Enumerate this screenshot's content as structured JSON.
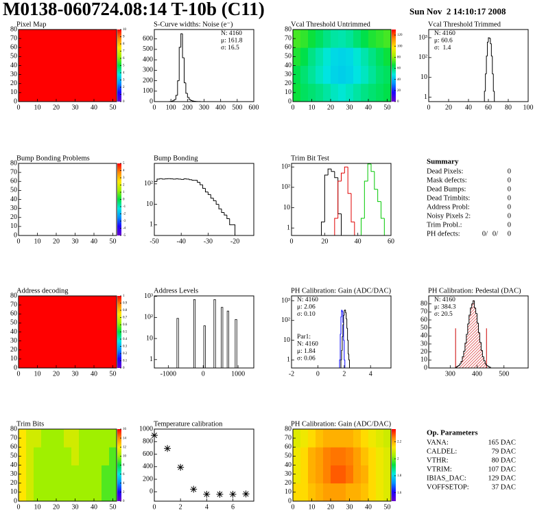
{
  "header": {
    "title": "M0138-060724.08:14 T-10b (C11)",
    "date": "Sun Nov  2 14:10:17 2008"
  },
  "palette": [
    "#6a00cc",
    "#1f00ff",
    "#0090ff",
    "#00e8e0",
    "#00e040",
    "#a0f000",
    "#ffe600",
    "#ff8a00",
    "#ff0000"
  ],
  "chart_data": [
    {
      "type": "heatmap",
      "title": "Pixel Map",
      "xlim": [
        0,
        52
      ],
      "ylim": [
        0,
        80
      ],
      "xticks": [
        0,
        10,
        20,
        30,
        40,
        50
      ],
      "yticks": [
        0,
        10,
        20,
        30,
        40,
        50,
        60,
        70,
        80
      ],
      "zlim": [
        0,
        10
      ],
      "zticks": [
        0,
        1,
        2,
        3,
        4,
        5,
        6,
        7,
        8,
        9,
        10
      ],
      "values": [
        [
          10
        ]
      ]
    },
    {
      "type": "histogram",
      "title": "S-Curve widths: Noise (e⁻)",
      "xlim": [
        0,
        600
      ],
      "ylim": [
        0,
        690
      ],
      "xticks": [
        0,
        100,
        200,
        300,
        400,
        500,
        600
      ],
      "yticks": [
        0,
        100,
        200,
        300,
        400,
        500,
        600
      ],
      "bins": [
        90,
        100,
        110,
        120,
        130,
        140,
        150,
        160,
        170,
        180,
        190,
        200,
        210,
        220,
        230,
        240,
        250,
        260,
        270,
        280,
        290,
        300
      ],
      "values": [
        1,
        3,
        8,
        20,
        60,
        200,
        520,
        650,
        420,
        180,
        80,
        40,
        20,
        10,
        6,
        3,
        2,
        1,
        1,
        0,
        0
      ],
      "color": "#000000",
      "stats": [
        {
          "text": "N: 4160",
          "color": "#000000"
        },
        {
          "text": "μ: 161.8",
          "color": "#000000"
        },
        {
          "text": "σ: 16.5",
          "color": "#000000"
        }
      ]
    },
    {
      "type": "heatmap",
      "title": "Vcal Threshold Untrimmed",
      "xlim": [
        0,
        52
      ],
      "ylim": [
        0,
        80
      ],
      "xticks": [
        0,
        10,
        20,
        30,
        40,
        50
      ],
      "yticks": [
        0,
        10,
        20,
        30,
        40,
        50,
        60,
        70,
        80
      ],
      "zlim": [
        0,
        130
      ],
      "zticks": [
        0,
        20,
        40,
        60,
        80,
        100,
        120
      ],
      "values": [
        [
          66,
          62,
          60,
          58,
          55,
          52,
          50,
          52,
          55,
          58,
          60,
          62,
          64
        ],
        [
          64,
          60,
          56,
          52,
          48,
          45,
          44,
          45,
          48,
          52,
          56,
          60,
          62
        ],
        [
          68,
          64,
          58,
          54,
          50,
          46,
          45,
          46,
          50,
          54,
          58,
          62,
          66
        ],
        [
          72,
          70,
          66,
          62,
          58,
          55,
          54,
          56,
          60,
          64,
          68,
          70,
          72
        ]
      ]
    },
    {
      "type": "histogram",
      "title": "Vcal Threshold Trimmed",
      "log_y": true,
      "xlim": [
        0,
        100
      ],
      "ylim": [
        0.6,
        2600
      ],
      "xticks": [
        0,
        20,
        40,
        60,
        80,
        100
      ],
      "yticks": [
        1,
        10,
        {
          "value": 100,
          "label": "10²"
        },
        {
          "value": 1000,
          "label": "10³"
        }
      ],
      "bins": [
        55,
        56,
        57,
        58,
        59,
        60,
        61,
        62,
        63,
        64,
        65,
        66,
        67
      ],
      "values": [
        0,
        2,
        15,
        120,
        600,
        1000,
        950,
        500,
        120,
        15,
        2,
        0
      ],
      "color": "#000000",
      "stats": [
        {
          "text": "N: 4160",
          "color": "#000000"
        },
        {
          "text": "μ: 60.6",
          "color": "#000000"
        },
        {
          "text": "σ:  1.4",
          "color": "#000000"
        }
      ]
    },
    {
      "type": "heatmap",
      "title": "Bump Bonding Problems",
      "xlim": [
        0,
        52
      ],
      "ylim": [
        0,
        80
      ],
      "xticks": [
        0,
        10,
        20,
        30,
        40,
        50
      ],
      "yticks": [
        0,
        10,
        20,
        30,
        40,
        50,
        60,
        70,
        80
      ],
      "zlim": [
        -5,
        5
      ],
      "zticks": [
        -5,
        -4,
        -3,
        -2,
        -1,
        0,
        1,
        2,
        3,
        4,
        5
      ]
    },
    {
      "type": "histogram",
      "title": "Bump Bonding",
      "log_y": true,
      "xlim": [
        -50,
        -13
      ],
      "ylim": [
        0.3,
        1000
      ],
      "xticks": [
        -50,
        -40,
        -30,
        -20
      ],
      "yticks": [
        1,
        10,
        {
          "value": 100,
          "label": "10²"
        }
      ],
      "bins": [
        -50,
        -49,
        -48,
        -47,
        -46,
        -45,
        -44,
        -43,
        -42,
        -41,
        -40,
        -39,
        -38,
        -37,
        -36,
        -35,
        -34,
        -33,
        -32,
        -31,
        -30,
        -29,
        -28,
        -27,
        -26,
        -25,
        -24,
        -23,
        -22,
        -21,
        -20
      ],
      "values": [
        130,
        170,
        180,
        170,
        175,
        180,
        175,
        170,
        175,
        170,
        165,
        175,
        170,
        160,
        150,
        150,
        120,
        90,
        60,
        40,
        30,
        20,
        15,
        10,
        6,
        4,
        3,
        2,
        1,
        1
      ],
      "color": "#000000"
    },
    {
      "type": "histogram",
      "title": "Trim Bit Test",
      "log_y": true,
      "xlim": [
        0,
        60
      ],
      "ylim": [
        0.43,
        1500
      ],
      "xticks": [
        0,
        20,
        40,
        60
      ],
      "yticks": [
        1,
        10,
        {
          "value": 100,
          "label": "10²"
        },
        {
          "value": 1000,
          "label": "10³"
        }
      ],
      "bins": [
        16,
        18,
        20,
        22,
        24,
        26,
        28,
        30,
        32,
        34,
        36,
        38,
        40,
        42,
        44,
        46,
        48,
        50,
        52,
        54,
        56,
        58
      ],
      "series": [
        {
          "color": "#000000",
          "values": [
            0,
            2,
            400,
            800,
            600,
            300,
            5,
            0,
            0,
            0,
            0,
            0,
            0,
            0,
            0,
            0,
            0,
            0,
            0,
            0,
            0
          ]
        },
        {
          "color": "#e00000",
          "values": [
            0,
            0,
            0,
            0,
            0,
            3,
            200,
            500,
            1000,
            50,
            2,
            0,
            0,
            0,
            0,
            0,
            0,
            0,
            0,
            0,
            0
          ]
        },
        {
          "color": "#00c800",
          "values": [
            0,
            0,
            0,
            0,
            0,
            0,
            0,
            0,
            0,
            0,
            0,
            0,
            0,
            3,
            200,
            1400,
            600,
            80,
            20,
            3,
            0
          ]
        }
      ]
    },
    {
      "type": "heatmap",
      "title": "Address decoding",
      "xlim": [
        0,
        52
      ],
      "ylim": [
        0,
        80
      ],
      "xticks": [
        0,
        10,
        20,
        30,
        40,
        50
      ],
      "yticks": [
        0,
        10,
        20,
        30,
        40,
        50,
        60,
        70,
        80
      ],
      "zlim": [
        0,
        1
      ],
      "zticks": [
        0,
        0.1,
        0.2,
        0.3,
        0.4,
        0.5,
        0.6,
        0.7,
        0.8,
        0.9,
        1
      ],
      "values": [
        [
          1
        ]
      ]
    },
    {
      "type": "spikes",
      "title": "Address Levels",
      "log_y": true,
      "xlim": [
        -1400,
        1450
      ],
      "ylim": [
        0.4,
        1050
      ],
      "xticks": [
        -1000,
        0,
        1000
      ],
      "yticks": [
        1,
        10,
        {
          "value": 100,
          "label": "10²"
        },
        {
          "value": 1000,
          "label": "10³"
        }
      ],
      "x": [
        -730,
        -250,
        40,
        330,
        540,
        710,
        940
      ],
      "values": [
        90,
        700,
        40,
        700,
        300,
        200,
        80
      ],
      "color": "#000000"
    },
    {
      "type": "histogram",
      "title": "PH Calibration: Gain (ADC/DAC)",
      "log_y": true,
      "xlim": [
        -2,
        5.55
      ],
      "ylim": [
        0.39,
        1750
      ],
      "xticks": [
        -2,
        0,
        2,
        4
      ],
      "yticks": [
        1,
        10,
        {
          "value": 100,
          "label": "10²"
        },
        {
          "value": 1000,
          "label": "10³"
        }
      ],
      "bins": [
        1.6,
        1.65,
        1.7,
        1.75,
        1.8,
        1.85,
        1.9,
        1.95,
        2.0,
        2.05,
        2.1,
        2.15,
        2.2,
        2.25,
        2.3,
        2.35,
        2.4
      ],
      "series": [
        {
          "color": "#0000ff",
          "values": [
            0,
            1,
            20,
            150,
            330,
            280,
            80,
            10,
            1,
            0,
            0,
            0,
            0,
            0,
            0,
            0
          ]
        },
        {
          "color": "#000000",
          "values": [
            0,
            0,
            0,
            1,
            3,
            15,
            60,
            180,
            320,
            340,
            250,
            120,
            40,
            10,
            2,
            1
          ]
        }
      ],
      "stats": [
        {
          "text": "N: 4160",
          "color": "#000000"
        },
        {
          "text": "μ: 2.06",
          "color": "#000000"
        },
        {
          "text": "σ: 0.10",
          "color": "#000000"
        }
      ],
      "fit_stats": [
        {
          "text": "Par1:",
          "color": "#0000ff"
        },
        {
          "text": "N: 4160",
          "color": "#0000ff"
        },
        {
          "text": "μ: 1.84",
          "color": "#0000ff"
        },
        {
          "text": "σ: 0.06",
          "color": "#0000ff"
        }
      ]
    },
    {
      "type": "histogram",
      "title": "PH Calibration: Pedestal (DAC)",
      "xlim": [
        220,
        590
      ],
      "ylim": [
        0,
        90
      ],
      "xticks": [
        300,
        400,
        500
      ],
      "yticks": [
        0,
        10,
        20,
        30,
        40,
        50,
        60,
        70,
        80
      ],
      "bins": [
        320,
        325,
        330,
        335,
        340,
        345,
        350,
        355,
        360,
        365,
        370,
        375,
        380,
        385,
        390,
        395,
        400,
        405,
        410,
        415,
        420,
        425,
        430,
        435,
        440,
        445,
        450
      ],
      "values": [
        1,
        2,
        3,
        5,
        8,
        14,
        21,
        31,
        42,
        55,
        66,
        75,
        80,
        84,
        75,
        68,
        56,
        44,
        32,
        22,
        14,
        9,
        5,
        3,
        2,
        1
      ],
      "color": "#000000",
      "fit_color": "#cc0000",
      "fit_range": [
        320,
        435
      ],
      "stats": [
        {
          "text": "N: 4160",
          "color": "#000000"
        },
        {
          "text": "μ: 384.3",
          "color": "#cc0000"
        },
        {
          "text": "σ: 20.5",
          "color": "#cc0000"
        }
      ]
    },
    {
      "type": "heatmap",
      "title": "Trim Bits",
      "xlim": [
        0,
        52
      ],
      "ylim": [
        0,
        80
      ],
      "xticks": [
        0,
        10,
        20,
        30,
        40,
        50
      ],
      "yticks": [
        0,
        10,
        20,
        30,
        40,
        50,
        60,
        70,
        80
      ],
      "zlim": [
        0,
        16
      ],
      "zticks": [
        0,
        2,
        4,
        6,
        8,
        10,
        12,
        14,
        16
      ],
      "values": [
        [
          12,
          11,
          10,
          10,
          10,
          10,
          10,
          10,
          10,
          10,
          10,
          9,
          9
        ],
        [
          12,
          11,
          10,
          10,
          10,
          10,
          10,
          10,
          10,
          10,
          10,
          9,
          9
        ],
        [
          12,
          11,
          10,
          10,
          10,
          10,
          10,
          11,
          10,
          10,
          10,
          10,
          9
        ],
        [
          12,
          11,
          11,
          10,
          10,
          10,
          11,
          11,
          10,
          10,
          10,
          10,
          10
        ]
      ]
    },
    {
      "type": "scatter",
      "title": "Temperature calibration",
      "xlim": [
        0,
        7.6
      ],
      "ylim": [
        -150,
        1000
      ],
      "xticks": [
        0,
        2,
        4,
        6
      ],
      "yticks": [
        0,
        200,
        400,
        600,
        800,
        1000
      ],
      "x": [
        0,
        1,
        2,
        3,
        4,
        5,
        6,
        7
      ],
      "values": [
        900,
        690,
        390,
        40,
        -40,
        -40,
        -40,
        -35
      ],
      "color": "#000000"
    },
    {
      "type": "heatmap",
      "title": "PH Calibration: Gain (ADC/DAC)",
      "xlim": [
        0,
        52
      ],
      "ylim": [
        0,
        80
      ],
      "xticks": [
        0,
        10,
        20,
        30,
        40,
        50
      ],
      "yticks": [
        0,
        10,
        20,
        30,
        40,
        50,
        60,
        70,
        80
      ],
      "zlim": [
        1.5,
        2.35
      ],
      "zticks": [
        1.6,
        1.8,
        2,
        2.2
      ],
      "values": [
        [
          2.15,
          2.15,
          2.18,
          2.2,
          2.22,
          2.22,
          2.22,
          2.2,
          2.2,
          2.18,
          2.15,
          2.12,
          2.1
        ],
        [
          2.12,
          2.15,
          2.2,
          2.22,
          2.25,
          2.28,
          2.28,
          2.26,
          2.22,
          2.2,
          2.15,
          2.12,
          2.1
        ],
        [
          2.12,
          2.15,
          2.2,
          2.22,
          2.25,
          2.26,
          2.26,
          2.25,
          2.22,
          2.18,
          2.15,
          2.12,
          2.1
        ],
        [
          2.1,
          2.12,
          2.15,
          2.18,
          2.2,
          2.2,
          2.2,
          2.2,
          2.18,
          2.15,
          2.12,
          2.1,
          2.08
        ]
      ]
    }
  ],
  "summary": {
    "title": "Summary",
    "rows": [
      {
        "label": "Dead Pixels:",
        "value": 0
      },
      {
        "label": "Mask defects:",
        "value": 0
      },
      {
        "label": "Dead Bumps:",
        "value": 0
      },
      {
        "label": "Dead Trimbits:",
        "value": 0
      },
      {
        "label": "Address Probl:",
        "value": 0
      },
      {
        "label": "Noisy Pixels 2:",
        "value": 0
      },
      {
        "label": "Trim Probl.:",
        "value": 0
      }
    ],
    "ph_defects": {
      "label": "PH defects:",
      "parts": [
        {
          "text": "0/",
          "color": "#000000"
        },
        {
          "text": "0/",
          "color": "#e00000"
        },
        {
          "text": "0",
          "color": "#0000ff"
        }
      ]
    }
  },
  "op_parameters": {
    "title": "Op. Parameters",
    "rows": [
      {
        "label": "VANA:",
        "value": "165 DAC"
      },
      {
        "label": "CALDEL:",
        "value": "79 DAC"
      },
      {
        "label": "VTHR:",
        "value": "80 DAC"
      },
      {
        "label": "VTRIM:",
        "value": "107 DAC"
      },
      {
        "label": "IBIAS_DAC:",
        "value": "129 DAC"
      },
      {
        "label": "VOFFSETOP:",
        "value": "37 DAC"
      }
    ]
  }
}
